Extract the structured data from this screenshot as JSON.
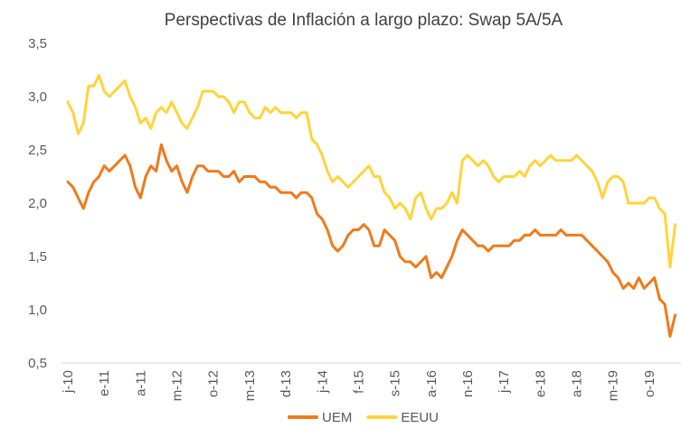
{
  "chart_data": {
    "type": "line",
    "title": "Perspectivas de Inflación a largo plazo: Swap 5A/5A",
    "categories": [
      "j-10",
      null,
      null,
      null,
      null,
      null,
      null,
      "e-11",
      null,
      null,
      null,
      null,
      null,
      null,
      "a-11",
      null,
      null,
      null,
      null,
      null,
      null,
      "m-12",
      null,
      null,
      null,
      null,
      null,
      null,
      "o-12",
      null,
      null,
      null,
      null,
      null,
      null,
      "m-13",
      null,
      null,
      null,
      null,
      null,
      null,
      "d-13",
      null,
      null,
      null,
      null,
      null,
      null,
      "j-14",
      null,
      null,
      null,
      null,
      null,
      null,
      "f-15",
      null,
      null,
      null,
      null,
      null,
      null,
      "s-15",
      null,
      null,
      null,
      null,
      null,
      null,
      "a-16",
      null,
      null,
      null,
      null,
      null,
      null,
      "n-16",
      null,
      null,
      null,
      null,
      null,
      null,
      "j-17",
      null,
      null,
      null,
      null,
      null,
      null,
      "e-18",
      null,
      null,
      null,
      null,
      null,
      null,
      "a-18",
      null,
      null,
      null,
      null,
      null,
      null,
      "m-19",
      null,
      null,
      null,
      null,
      null,
      null,
      "o-19",
      null,
      null,
      null,
      null,
      null
    ],
    "series": [
      {
        "name": "UEM",
        "color": "#F07A1A",
        "values": [
          2.2,
          2.15,
          2.05,
          1.95,
          2.1,
          2.2,
          2.25,
          2.35,
          2.3,
          2.35,
          2.4,
          2.45,
          2.35,
          2.15,
          2.05,
          2.25,
          2.35,
          2.3,
          2.55,
          2.4,
          2.3,
          2.35,
          2.2,
          2.1,
          2.25,
          2.35,
          2.35,
          2.3,
          2.3,
          2.3,
          2.25,
          2.25,
          2.3,
          2.2,
          2.25,
          2.25,
          2.25,
          2.2,
          2.2,
          2.15,
          2.15,
          2.1,
          2.1,
          2.1,
          2.05,
          2.1,
          2.1,
          2.05,
          1.9,
          1.85,
          1.75,
          1.6,
          1.55,
          1.6,
          1.7,
          1.75,
          1.75,
          1.8,
          1.75,
          1.6,
          1.6,
          1.75,
          1.7,
          1.65,
          1.5,
          1.45,
          1.45,
          1.4,
          1.45,
          1.5,
          1.3,
          1.35,
          1.3,
          1.4,
          1.5,
          1.65,
          1.75,
          1.7,
          1.65,
          1.6,
          1.6,
          1.55,
          1.6,
          1.6,
          1.6,
          1.6,
          1.65,
          1.65,
          1.7,
          1.7,
          1.75,
          1.7,
          1.7,
          1.7,
          1.7,
          1.75,
          1.7,
          1.7,
          1.7,
          1.7,
          1.65,
          1.6,
          1.55,
          1.5,
          1.45,
          1.35,
          1.3,
          1.2,
          1.25,
          1.2,
          1.3,
          1.2,
          1.25,
          1.3,
          1.1,
          1.05,
          0.75,
          0.95
        ]
      },
      {
        "name": "EEUU",
        "color": "#FFD43B",
        "values": [
          2.95,
          2.85,
          2.65,
          2.75,
          3.1,
          3.1,
          3.2,
          3.05,
          3.0,
          3.05,
          3.1,
          3.15,
          3.0,
          2.9,
          2.75,
          2.8,
          2.7,
          2.85,
          2.9,
          2.85,
          2.95,
          2.85,
          2.75,
          2.7,
          2.8,
          2.9,
          3.05,
          3.05,
          3.05,
          3.0,
          3.0,
          2.95,
          2.85,
          2.95,
          2.95,
          2.85,
          2.8,
          2.8,
          2.9,
          2.85,
          2.9,
          2.85,
          2.85,
          2.85,
          2.8,
          2.85,
          2.85,
          2.6,
          2.55,
          2.45,
          2.3,
          2.2,
          2.25,
          2.2,
          2.15,
          2.2,
          2.25,
          2.3,
          2.35,
          2.25,
          2.25,
          2.1,
          2.05,
          1.95,
          2.0,
          1.95,
          1.85,
          2.05,
          2.1,
          1.95,
          1.85,
          1.95,
          1.95,
          2.0,
          2.1,
          2.0,
          2.4,
          2.45,
          2.4,
          2.35,
          2.4,
          2.35,
          2.25,
          2.2,
          2.25,
          2.25,
          2.25,
          2.3,
          2.25,
          2.35,
          2.4,
          2.35,
          2.4,
          2.45,
          2.4,
          2.4,
          2.4,
          2.4,
          2.45,
          2.4,
          2.35,
          2.3,
          2.2,
          2.05,
          2.2,
          2.25,
          2.25,
          2.2,
          2.0,
          2.0,
          2.0,
          2.0,
          2.05,
          2.05,
          1.95,
          1.9,
          1.4,
          1.8
        ]
      }
    ],
    "ylim": [
      0.5,
      3.5
    ],
    "yticks": [
      {
        "value": 0.5,
        "label": "0,5"
      },
      {
        "value": 1.0,
        "label": "1,0"
      },
      {
        "value": 1.5,
        "label": "1,5"
      },
      {
        "value": 2.0,
        "label": "2,0"
      },
      {
        "value": 2.5,
        "label": "2,5"
      },
      {
        "value": 3.0,
        "label": "3,0"
      },
      {
        "value": 3.5,
        "label": "3,5"
      }
    ],
    "grid": false,
    "legend": "bottom"
  }
}
